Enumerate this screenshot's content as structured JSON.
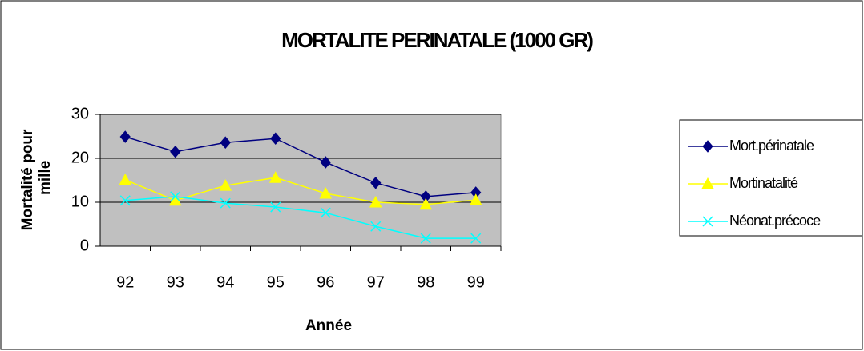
{
  "chart_data": {
    "type": "line",
    "title": "MORTALITE PERINATALE  (1000 GR)",
    "x_label": "Année",
    "y_label": "Mortalité pour mille",
    "categories": [
      "92",
      "93",
      "94",
      "95",
      "96",
      "97",
      "98",
      "99"
    ],
    "series": [
      {
        "name": "Mort.périnatale",
        "color": "#000080",
        "marker": "diamond",
        "values": [
          24.9,
          21.5,
          23.6,
          24.5,
          19.1,
          14.4,
          11.3,
          12.2
        ]
      },
      {
        "name": "Mortinatalité",
        "color": "#ffff00",
        "marker": "triangle",
        "values": [
          15.1,
          10.4,
          13.8,
          15.6,
          12,
          10,
          9.5,
          10.5
        ]
      },
      {
        "name": "Néonat.précoce",
        "color": "#00ffff",
        "marker": "x",
        "values": [
          10.4,
          11.3,
          9.8,
          8.9,
          7.6,
          4.5,
          1.8,
          1.8
        ]
      }
    ],
    "ylim": [
      0,
      30
    ],
    "yticks": [
      0,
      10,
      20,
      30
    ],
    "grid": true,
    "legend": "right"
  }
}
